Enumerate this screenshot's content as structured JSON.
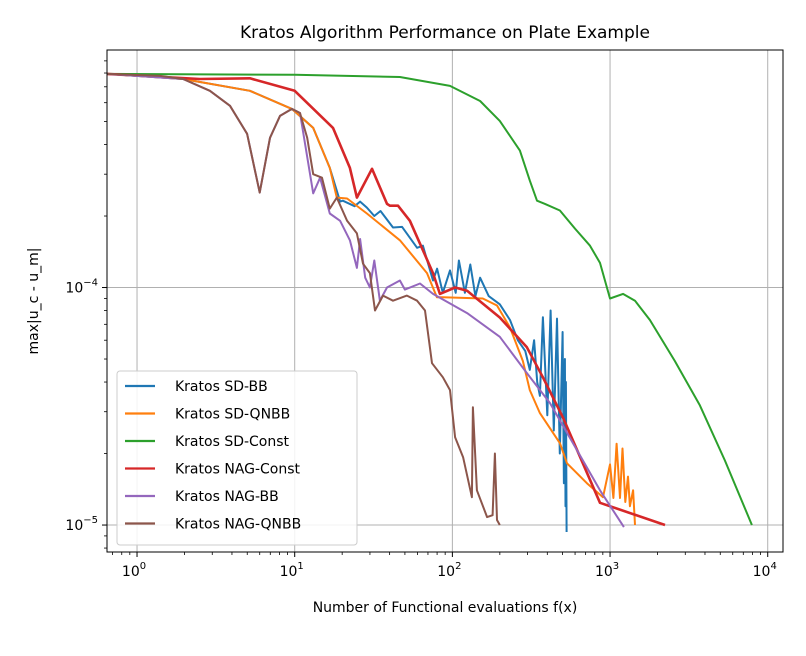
{
  "chart_data": {
    "type": "line",
    "title": "Kratos Algorithm Performance on Plate Example",
    "xlabel": "Number of Functional evaluations f(x)",
    "ylabel": "max|u_c - u_m|",
    "xscale": "log",
    "yscale": "log",
    "xlim": [
      0.645,
      12500
    ],
    "ylim": [
      7.7e-06,
      0.001
    ],
    "grid": true,
    "legend_position": "lower-left",
    "xticks": [
      {
        "value": 1,
        "base": "10",
        "exp": "0"
      },
      {
        "value": 10,
        "base": "10",
        "exp": "1"
      },
      {
        "value": 100,
        "base": "10",
        "exp": "2"
      },
      {
        "value": 1000,
        "base": "10",
        "exp": "3"
      },
      {
        "value": 10000,
        "base": "10",
        "exp": "4"
      }
    ],
    "yticks": [
      {
        "value": 0.0001,
        "base": "10",
        "exp": "−4"
      },
      {
        "value": 1e-05,
        "base": "10",
        "exp": "−5"
      }
    ],
    "series": [
      {
        "name": "Kratos SD-BB",
        "color": "#1f77b4",
        "points": [
          [
            0.645,
            0.000793
          ],
          [
            1.96,
            0.000755
          ],
          [
            5.2,
            0.000673
          ],
          [
            9.6,
            0.000565
          ],
          [
            13.1,
            0.00047
          ],
          [
            16.7,
            0.000319
          ],
          [
            19.4,
            0.00023
          ],
          [
            20.2,
            0.000232
          ],
          [
            24,
            0.00022
          ],
          [
            26,
            0.00023
          ],
          [
            28.7,
            0.000217
          ],
          [
            32,
            0.0002
          ],
          [
            35,
            0.00021
          ],
          [
            42,
            0.000179
          ],
          [
            48,
            0.00018
          ],
          [
            59.7,
            0.000147
          ],
          [
            65,
            0.00015
          ],
          [
            75.4,
            0.000107
          ],
          [
            80,
            0.00012
          ],
          [
            87,
            9.5e-05
          ],
          [
            96.6,
            0.000118
          ],
          [
            105,
            9.5e-05
          ],
          [
            110,
            0.00013
          ],
          [
            120,
            9.5e-05
          ],
          [
            130,
            0.000125
          ],
          [
            140,
            9.2e-05
          ],
          [
            150,
            0.00011
          ],
          [
            170,
            9.2e-05
          ],
          [
            200,
            8.5e-05
          ],
          [
            232,
            7.3e-05
          ],
          [
            260,
            6e-05
          ],
          [
            290,
            5.4e-05
          ],
          [
            310,
            4.5e-05
          ],
          [
            330,
            6e-05
          ],
          [
            345,
            4e-05
          ],
          [
            359,
            3.5e-05
          ],
          [
            375,
            7.5e-05
          ],
          [
            400,
            2.9e-05
          ],
          [
            420,
            8e-05
          ],
          [
            440,
            2.5e-05
          ],
          [
            461,
            7.4e-05
          ],
          [
            480,
            2e-05
          ],
          [
            500,
            6.5e-05
          ],
          [
            510,
            1.5e-05
          ],
          [
            517,
            5e-05
          ],
          [
            522,
            1.2e-05
          ],
          [
            525,
            4e-05
          ],
          [
            530,
            9.35e-06
          ]
        ]
      },
      {
        "name": "Kratos SD-QNBB",
        "color": "#ff7f0e",
        "points": [
          [
            0.645,
            0.000793
          ],
          [
            1.96,
            0.000755
          ],
          [
            5.2,
            0.000673
          ],
          [
            9.6,
            0.000565
          ],
          [
            13.1,
            0.00047
          ],
          [
            16.7,
            0.000319
          ],
          [
            18.5,
            0.000239
          ],
          [
            21.5,
            0.000237
          ],
          [
            28.7,
            0.000205
          ],
          [
            46.5,
            0.000158
          ],
          [
            69,
            0.000115
          ],
          [
            79.8,
            9.1e-05
          ],
          [
            87.1,
            9.1e-05
          ],
          [
            156,
            8.99e-05
          ],
          [
            192,
            8.4e-05
          ],
          [
            232,
            6.79e-05
          ],
          [
            280,
            4.9e-05
          ],
          [
            310,
            3.7e-05
          ],
          [
            359,
            2.96e-05
          ],
          [
            481,
            2.21e-05
          ],
          [
            533,
            1.82e-05
          ],
          [
            713,
            1.5e-05
          ],
          [
            902,
            1.31e-05
          ],
          [
            1000,
            1.8e-05
          ],
          [
            1050,
            1.3e-05
          ],
          [
            1100,
            2.2e-05
          ],
          [
            1156,
            1.3e-05
          ],
          [
            1200,
            2.1e-05
          ],
          [
            1250,
            1.25e-05
          ],
          [
            1300,
            1.6e-05
          ],
          [
            1337,
            1.2e-05
          ],
          [
            1400,
            1.4e-05
          ],
          [
            1440,
            1e-05
          ]
        ]
      },
      {
        "name": "Kratos SD-Const",
        "color": "#2ca02c",
        "points": [
          [
            0.645,
            0.000793
          ],
          [
            10,
            0.000786
          ],
          [
            46.5,
            0.00077
          ],
          [
            96.6,
            0.000706
          ],
          [
            150,
            0.00061
          ],
          [
            200,
            0.000503
          ],
          [
            268,
            0.000377
          ],
          [
            310,
            0.000282
          ],
          [
            344,
            0.000232
          ],
          [
            387,
            0.000225
          ],
          [
            481,
            0.000211
          ],
          [
            599,
            0.000177
          ],
          [
            746,
            0.00015
          ],
          [
            863,
            0.000127
          ],
          [
            1000,
            8.99e-05
          ],
          [
            1208,
            9.4e-05
          ],
          [
            1440,
            8.8e-05
          ],
          [
            1790,
            7.3e-05
          ],
          [
            2580,
            4.9e-05
          ],
          [
            3715,
            3.19e-05
          ],
          [
            5350,
            1.87e-05
          ],
          [
            7940,
            1e-05
          ]
        ]
      },
      {
        "name": "Kratos NAG-Const",
        "color": "#d62728",
        "points": [
          [
            0.645,
            0.000793
          ],
          [
            2.51,
            0.000755
          ],
          [
            5.2,
            0.00076
          ],
          [
            10,
            0.000673
          ],
          [
            17.5,
            0.00047
          ],
          [
            22.4,
            0.000319
          ],
          [
            24.8,
            0.000239
          ],
          [
            30.9,
            0.000316
          ],
          [
            38.5,
            0.000225
          ],
          [
            40.2,
            0.000221
          ],
          [
            45.2,
            0.000221
          ],
          [
            53.8,
            0.000191
          ],
          [
            75.4,
            0.000115
          ],
          [
            83.4,
            9.4e-05
          ],
          [
            104,
            0.0001
          ],
          [
            124,
            9.7e-05
          ],
          [
            200,
            7.48e-05
          ],
          [
            297,
            5.6e-05
          ],
          [
            375,
            4.19e-05
          ],
          [
            502,
            2.84e-05
          ],
          [
            863,
            1.24e-05
          ],
          [
            2230,
            1e-05
          ]
        ]
      },
      {
        "name": "Kratos NAG-BB",
        "color": "#9467bd",
        "points": [
          [
            0.645,
            0.000793
          ],
          [
            1.96,
            0.000755
          ],
          [
            2.9,
            0.000673
          ],
          [
            3.89,
            0.000582
          ],
          [
            4.99,
            0.000444
          ],
          [
            6.0,
            0.000251
          ],
          [
            6.97,
            0.000427
          ],
          [
            8.07,
            0.000528
          ],
          [
            9.6,
            0.000565
          ],
          [
            10.8,
            0.000543
          ],
          [
            13.1,
            0.000249
          ],
          [
            14.5,
            0.00029
          ],
          [
            16.7,
            0.000205
          ],
          [
            19.4,
            0.000191
          ],
          [
            22.4,
            0.000158
          ],
          [
            24.8,
            0.000121
          ],
          [
            26,
            0.00016
          ],
          [
            28,
            0.00011
          ],
          [
            30,
            0.0001
          ],
          [
            32,
            0.00013
          ],
          [
            34.7,
            8.8e-05
          ],
          [
            38.5,
            0.0001
          ],
          [
            46.5,
            0.000107
          ],
          [
            50,
            9.8e-05
          ],
          [
            62.3,
            0.000104
          ],
          [
            75.4,
            9.4e-05
          ],
          [
            124,
            7.8e-05
          ],
          [
            200,
            6.2e-05
          ],
          [
            297,
            4.36e-05
          ],
          [
            416,
            3.26e-05
          ],
          [
            582,
            2.21e-05
          ],
          [
            863,
            1.4e-05
          ],
          [
            1225,
            9.8e-06
          ]
        ]
      },
      {
        "name": "Kratos NAG-QNBB",
        "color": "#8c564b",
        "points": [
          [
            0.645,
            0.000793
          ],
          [
            1.4,
            0.000778
          ],
          [
            1.96,
            0.000755
          ],
          [
            2.9,
            0.000673
          ],
          [
            3.89,
            0.000582
          ],
          [
            4.99,
            0.000444
          ],
          [
            6.0,
            0.000251
          ],
          [
            6.97,
            0.000427
          ],
          [
            8.07,
            0.000528
          ],
          [
            9.6,
            0.000565
          ],
          [
            10.8,
            0.000543
          ],
          [
            12,
            0.000427
          ],
          [
            13.1,
            0.0003
          ],
          [
            14.9,
            0.00029
          ],
          [
            16.7,
            0.000215
          ],
          [
            18.5,
            0.000239
          ],
          [
            21.5,
            0.000191
          ],
          [
            24.8,
            0.000169
          ],
          [
            27.1,
            0.000126
          ],
          [
            30,
            0.000115
          ],
          [
            32.3,
            8e-05
          ],
          [
            36.3,
            9.25e-05
          ],
          [
            42,
            8.8e-05
          ],
          [
            51.5,
            9.25e-05
          ],
          [
            59.7,
            8.8e-05
          ],
          [
            67,
            8e-05
          ],
          [
            74.3,
            4.8e-05
          ],
          [
            87.1,
            4.19e-05
          ],
          [
            96.6,
            3.7e-05
          ],
          [
            104,
            2.34e-05
          ],
          [
            117,
            1.93e-05
          ],
          [
            133,
            1.31e-05
          ],
          [
            135,
            3.13e-05
          ],
          [
            143,
            1.4e-05
          ],
          [
            166,
            1.08e-05
          ],
          [
            180,
            1.1e-05
          ],
          [
            186,
            2e-05
          ],
          [
            192,
            1.05e-05
          ],
          [
            200,
            1e-05
          ]
        ]
      }
    ]
  }
}
